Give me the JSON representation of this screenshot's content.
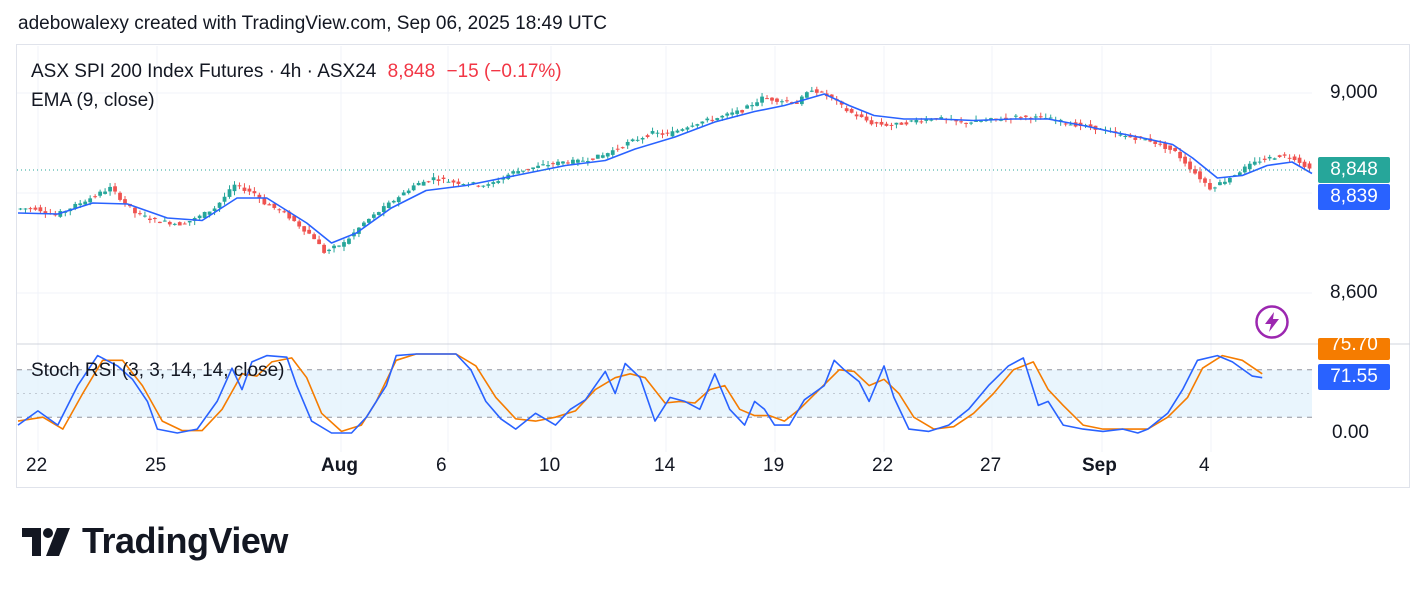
{
  "caption": "adebowalexy created with TradingView.com, Sep 06, 2025 18:49 UTC",
  "legend": {
    "symbol": "ASX SPI 200 Index Futures · 4h · ASX24",
    "last": "8,848",
    "change": "−15 (−0.17%)",
    "ema_label": "EMA (9, close)",
    "stoch_label": "Stoch RSI (3, 3, 14, 14, close)"
  },
  "price_tags": {
    "last": "8,848",
    "ema": "8,839",
    "stoch_k": "71.55",
    "stoch_d": "75.70"
  },
  "y_ticks": [
    "9,000",
    "8,600",
    "0.00"
  ],
  "x_ticks": [
    {
      "label": "22",
      "bold": false
    },
    {
      "label": "25",
      "bold": false
    },
    {
      "label": "Aug",
      "bold": true
    },
    {
      "label": "6",
      "bold": false
    },
    {
      "label": "10",
      "bold": false
    },
    {
      "label": "14",
      "bold": false
    },
    {
      "label": "19",
      "bold": false
    },
    {
      "label": "22",
      "bold": false
    },
    {
      "label": "27",
      "bold": false
    },
    {
      "label": "Sep",
      "bold": true
    },
    {
      "label": "4",
      "bold": false
    }
  ],
  "footer": {
    "brand": "TradingView"
  },
  "colors": {
    "up": "#26a69a",
    "down": "#ef5350",
    "ema": "#2962ff",
    "stoch_k": "#2962ff",
    "stoch_d": "#f57c00",
    "band": "#e3f2fd",
    "last_tag": "#26a69a",
    "ema_tag": "#2962ff"
  },
  "chart_data": {
    "type": "candlestick",
    "timeframe": "4h",
    "price_axis": {
      "ylim": [
        8500,
        9075
      ],
      "ticks": [
        8600,
        9000
      ]
    },
    "last_price": 8848,
    "ema_last": 8839,
    "price_path": [
      [
        0,
        8768
      ],
      [
        4,
        8770
      ],
      [
        8,
        8755
      ],
      [
        11,
        8770
      ],
      [
        15,
        8790
      ],
      [
        19,
        8810
      ],
      [
        21,
        8790
      ],
      [
        24,
        8760
      ],
      [
        28,
        8745
      ],
      [
        33,
        8738
      ],
      [
        36,
        8748
      ],
      [
        40,
        8770
      ],
      [
        44,
        8815
      ],
      [
        48,
        8800
      ],
      [
        50,
        8780
      ],
      [
        54,
        8760
      ],
      [
        60,
        8710
      ],
      [
        62,
        8682
      ],
      [
        66,
        8700
      ],
      [
        70,
        8740
      ],
      [
        75,
        8778
      ],
      [
        80,
        8815
      ],
      [
        84,
        8830
      ],
      [
        88,
        8822
      ],
      [
        95,
        8815
      ],
      [
        100,
        8842
      ],
      [
        106,
        8855
      ],
      [
        110,
        8862
      ],
      [
        113,
        8863
      ],
      [
        118,
        8875
      ],
      [
        123,
        8900
      ],
      [
        128,
        8920
      ],
      [
        131,
        8917
      ],
      [
        136,
        8938
      ],
      [
        141,
        8950
      ],
      [
        146,
        8965
      ],
      [
        150,
        8990
      ],
      [
        154,
        8985
      ],
      [
        157,
        8980
      ],
      [
        160,
        9008
      ],
      [
        164,
        8990
      ],
      [
        167,
        8965
      ],
      [
        170,
        8950
      ],
      [
        172,
        8940
      ],
      [
        176,
        8935
      ],
      [
        181,
        8945
      ],
      [
        185,
        8950
      ],
      [
        190,
        8940
      ],
      [
        195,
        8945
      ],
      [
        201,
        8952
      ],
      [
        207,
        8950
      ],
      [
        211,
        8940
      ],
      [
        217,
        8930
      ],
      [
        222,
        8915
      ],
      [
        228,
        8905
      ],
      [
        233,
        8882
      ],
      [
        237,
        8840
      ],
      [
        240,
        8810
      ],
      [
        243,
        8825
      ],
      [
        247,
        8850
      ],
      [
        250,
        8865
      ],
      [
        254,
        8875
      ],
      [
        257,
        8870
      ],
      [
        260,
        8848
      ]
    ],
    "ema_path": [
      [
        0,
        8760
      ],
      [
        8,
        8758
      ],
      [
        15,
        8780
      ],
      [
        22,
        8778
      ],
      [
        30,
        8750
      ],
      [
        37,
        8745
      ],
      [
        44,
        8790
      ],
      [
        50,
        8790
      ],
      [
        58,
        8740
      ],
      [
        63,
        8700
      ],
      [
        68,
        8720
      ],
      [
        75,
        8770
      ],
      [
        82,
        8805
      ],
      [
        90,
        8815
      ],
      [
        100,
        8835
      ],
      [
        110,
        8855
      ],
      [
        118,
        8865
      ],
      [
        124,
        8888
      ],
      [
        132,
        8912
      ],
      [
        140,
        8942
      ],
      [
        148,
        8963
      ],
      [
        154,
        8975
      ],
      [
        162,
        8998
      ],
      [
        167,
        8975
      ],
      [
        172,
        8955
      ],
      [
        178,
        8948
      ],
      [
        185,
        8948
      ],
      [
        192,
        8945
      ],
      [
        200,
        8948
      ],
      [
        207,
        8948
      ],
      [
        214,
        8935
      ],
      [
        220,
        8922
      ],
      [
        227,
        8908
      ],
      [
        232,
        8897
      ],
      [
        236,
        8870
      ],
      [
        241,
        8830
      ],
      [
        246,
        8835
      ],
      [
        251,
        8855
      ],
      [
        256,
        8862
      ],
      [
        260,
        8839
      ]
    ],
    "stoch_rsi": {
      "range": [
        0,
        100
      ],
      "band": [
        20,
        80
      ],
      "k_last": 71.55,
      "d_last": 75.7,
      "k": [
        [
          0,
          10
        ],
        [
          4,
          28
        ],
        [
          8,
          10
        ],
        [
          12,
          60
        ],
        [
          16,
          98
        ],
        [
          20,
          85
        ],
        [
          23,
          68
        ],
        [
          26,
          40
        ],
        [
          28,
          5
        ],
        [
          32,
          0
        ],
        [
          36,
          5
        ],
        [
          40,
          40
        ],
        [
          43,
          82
        ],
        [
          45,
          55
        ],
        [
          47,
          90
        ],
        [
          50,
          98
        ],
        [
          54,
          96
        ],
        [
          56,
          60
        ],
        [
          59,
          15
        ],
        [
          63,
          0
        ],
        [
          67,
          0
        ],
        [
          70,
          20
        ],
        [
          74,
          60
        ],
        [
          76,
          98
        ],
        [
          80,
          100
        ],
        [
          88,
          100
        ],
        [
          91,
          80
        ],
        [
          94,
          40
        ],
        [
          97,
          18
        ],
        [
          100,
          5
        ],
        [
          104,
          25
        ],
        [
          108,
          10
        ],
        [
          111,
          30
        ],
        [
          114,
          42
        ],
        [
          118,
          78
        ],
        [
          120,
          50
        ],
        [
          122,
          88
        ],
        [
          125,
          70
        ],
        [
          128,
          15
        ],
        [
          131,
          45
        ],
        [
          134,
          40
        ],
        [
          137,
          30
        ],
        [
          140,
          75
        ],
        [
          143,
          30
        ],
        [
          146,
          10
        ],
        [
          148,
          40
        ],
        [
          150,
          30
        ],
        [
          152,
          10
        ],
        [
          155,
          10
        ],
        [
          158,
          42
        ],
        [
          162,
          60
        ],
        [
          164,
          92
        ],
        [
          166,
          80
        ],
        [
          169,
          65
        ],
        [
          171,
          40
        ],
        [
          174,
          85
        ],
        [
          176,
          45
        ],
        [
          179,
          5
        ],
        [
          183,
          2
        ],
        [
          187,
          10
        ],
        [
          191,
          30
        ],
        [
          195,
          60
        ],
        [
          199,
          85
        ],
        [
          202,
          95
        ],
        [
          205,
          35
        ],
        [
          207,
          40
        ],
        [
          210,
          10
        ],
        [
          214,
          5
        ],
        [
          218,
          2
        ],
        [
          222,
          5
        ],
        [
          225,
          0
        ],
        [
          227,
          5
        ],
        [
          231,
          25
        ],
        [
          234,
          55
        ],
        [
          237,
          92
        ],
        [
          241,
          98
        ],
        [
          244,
          90
        ],
        [
          248,
          72
        ],
        [
          250,
          70
        ]
      ],
      "d": [
        [
          0,
          15
        ],
        [
          5,
          20
        ],
        [
          9,
          5
        ],
        [
          13,
          50
        ],
        [
          17,
          92
        ],
        [
          21,
          92
        ],
        [
          25,
          60
        ],
        [
          29,
          15
        ],
        [
          33,
          3
        ],
        [
          37,
          3
        ],
        [
          41,
          30
        ],
        [
          45,
          75
        ],
        [
          48,
          72
        ],
        [
          51,
          90
        ],
        [
          55,
          95
        ],
        [
          58,
          70
        ],
        [
          61,
          25
        ],
        [
          65,
          2
        ],
        [
          69,
          10
        ],
        [
          72,
          40
        ],
        [
          76,
          92
        ],
        [
          80,
          100
        ],
        [
          88,
          100
        ],
        [
          92,
          85
        ],
        [
          96,
          45
        ],
        [
          100,
          18
        ],
        [
          104,
          15
        ],
        [
          108,
          20
        ],
        [
          112,
          28
        ],
        [
          116,
          55
        ],
        [
          120,
          70
        ],
        [
          123,
          75
        ],
        [
          126,
          70
        ],
        [
          130,
          38
        ],
        [
          133,
          40
        ],
        [
          136,
          38
        ],
        [
          139,
          55
        ],
        [
          142,
          60
        ],
        [
          145,
          30
        ],
        [
          148,
          22
        ],
        [
          151,
          22
        ],
        [
          154,
          15
        ],
        [
          157,
          30
        ],
        [
          161,
          55
        ],
        [
          165,
          80
        ],
        [
          168,
          78
        ],
        [
          171,
          60
        ],
        [
          174,
          68
        ],
        [
          177,
          50
        ],
        [
          180,
          20
        ],
        [
          184,
          5
        ],
        [
          188,
          8
        ],
        [
          192,
          25
        ],
        [
          196,
          50
        ],
        [
          200,
          80
        ],
        [
          204,
          90
        ],
        [
          207,
          55
        ],
        [
          210,
          35
        ],
        [
          214,
          10
        ],
        [
          218,
          5
        ],
        [
          223,
          5
        ],
        [
          227,
          5
        ],
        [
          231,
          20
        ],
        [
          235,
          45
        ],
        [
          238,
          82
        ],
        [
          242,
          98
        ],
        [
          246,
          92
        ],
        [
          250,
          75
        ]
      ]
    }
  }
}
